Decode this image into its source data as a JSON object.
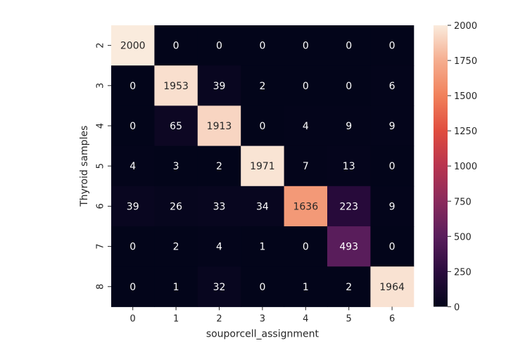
{
  "chart_data": {
    "type": "heatmap",
    "title": "",
    "xlabel": "souporcell_assignment",
    "ylabel": "Thyroid samples",
    "x_categories": [
      "0",
      "1",
      "2",
      "3",
      "4",
      "5",
      "6"
    ],
    "y_categories": [
      "2",
      "3",
      "4",
      "5",
      "6",
      "7",
      "8"
    ],
    "values": [
      [
        2000,
        0,
        0,
        0,
        0,
        0,
        0
      ],
      [
        0,
        1953,
        39,
        2,
        0,
        0,
        6
      ],
      [
        0,
        65,
        1913,
        0,
        4,
        9,
        9
      ],
      [
        4,
        3,
        2,
        1971,
        7,
        13,
        0
      ],
      [
        39,
        26,
        33,
        34,
        1636,
        223,
        9
      ],
      [
        0,
        2,
        4,
        1,
        0,
        493,
        0
      ],
      [
        0,
        1,
        32,
        0,
        1,
        2,
        1964
      ]
    ],
    "colorbar": {
      "min": 0,
      "max": 2000,
      "ticks": [
        0,
        250,
        500,
        750,
        1000,
        1250,
        1500,
        1750,
        2000
      ],
      "colormap": "rocket"
    }
  },
  "colors": {
    "rocket_stops": [
      "#03051a",
      "#2b0b3e",
      "#5a1e5c",
      "#8a2a5c",
      "#b8344f",
      "#e04c3e",
      "#f1815b",
      "#f5ad8f",
      "#faebdd"
    ],
    "annotation_dark_text": "#262626",
    "annotation_light_text": "#ffffff"
  }
}
